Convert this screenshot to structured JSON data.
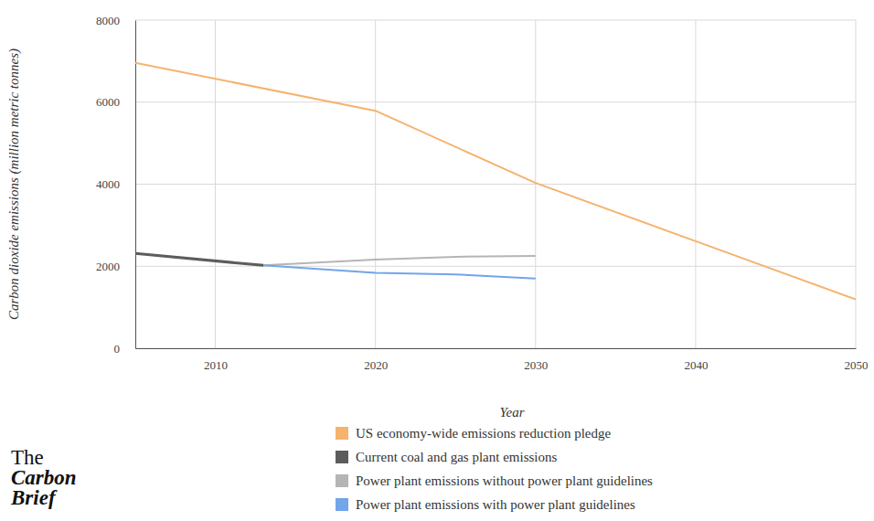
{
  "chart_data": {
    "type": "line",
    "x_label": "Year",
    "y_label": "Carbon dioxide emissions (million metric tonnes)",
    "xlim": [
      2005,
      2050
    ],
    "xticks": [
      2010,
      2020,
      2030,
      2040,
      2050
    ],
    "ylim": [
      0,
      8000
    ],
    "yticks": [
      0,
      2000,
      4000,
      6000,
      8000
    ],
    "grid": true,
    "legend": "bottom",
    "annotations": [
      "The",
      "Carbon",
      "Brief"
    ],
    "series": [
      {
        "name": "US economy-wide emissions reduction pledge",
        "color": "#f5b36e",
        "x": [
          2005,
          2020,
          2030,
          2050
        ],
        "values": [
          6960,
          5790,
          4030,
          1190
        ]
      },
      {
        "name": "Current coal and gas plant emissions",
        "color": "#5c5c5c",
        "x": [
          2005,
          2013
        ],
        "values": [
          2310,
          2020
        ]
      },
      {
        "name": "Power plant emissions without power plant guidelines",
        "color": "#b5b5b5",
        "x": [
          2013,
          2020,
          2025,
          2030
        ],
        "values": [
          2020,
          2160,
          2230,
          2250
        ]
      },
      {
        "name": "Power plant emissions with power plant guidelines",
        "color": "#72a5ea",
        "x": [
          2013,
          2020,
          2025,
          2030
        ],
        "values": [
          2020,
          1840,
          1800,
          1700
        ]
      }
    ]
  }
}
